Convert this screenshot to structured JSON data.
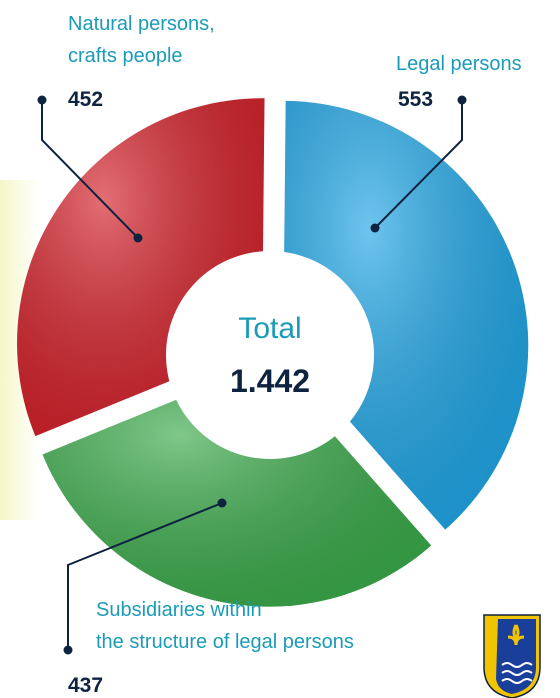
{
  "chart_data": {
    "type": "pie",
    "categories": [
      "Legal persons",
      "Subsidiaries within\nthe structure of legal persons",
      "Natural persons,\ncrafts people"
    ],
    "values": [
      553,
      437,
      452
    ],
    "colors": [
      "#1fa6e6",
      "#3aaa4a",
      "#d42029"
    ],
    "center_title": "Total",
    "total_label": "1.442"
  }
}
